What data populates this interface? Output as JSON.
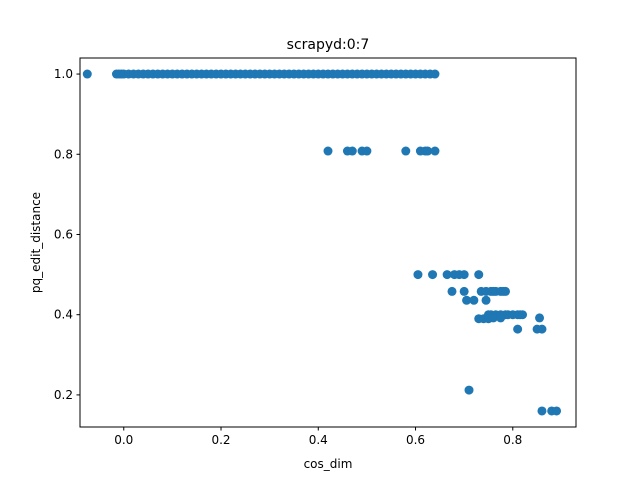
{
  "chart_data": {
    "type": "scatter",
    "title": "scrapyd:0:7",
    "xlabel": "cos_dim",
    "ylabel": "pq_edit_distance",
    "xlim": [
      -0.09,
      0.93
    ],
    "ylim": [
      0.12,
      1.04
    ],
    "xticks": [
      0.0,
      0.2,
      0.4,
      0.6,
      0.8
    ],
    "xtick_labels": [
      "0.0",
      "0.2",
      "0.4",
      "0.6",
      "0.8"
    ],
    "yticks": [
      0.2,
      0.4,
      0.6,
      0.8,
      1.0
    ],
    "ytick_labels": [
      "0.2",
      "0.4",
      "0.6",
      "0.8",
      "1.0"
    ],
    "grid": false,
    "legend": "none",
    "marker_color": "#1f77b4",
    "series": [
      {
        "x": [
          -0.075,
          -0.015,
          -0.01,
          -0.005,
          0.0,
          0.01,
          0.02,
          0.03,
          0.04,
          0.05,
          0.06,
          0.07,
          0.08,
          0.09,
          0.1,
          0.11,
          0.12,
          0.13,
          0.14,
          0.15,
          0.16,
          0.17,
          0.18,
          0.19,
          0.2,
          0.21,
          0.22,
          0.23,
          0.24,
          0.25,
          0.26,
          0.27,
          0.28,
          0.29,
          0.3,
          0.31,
          0.32,
          0.33,
          0.34,
          0.35,
          0.36,
          0.37,
          0.38,
          0.39,
          0.4,
          0.41,
          0.42,
          0.43,
          0.44,
          0.45,
          0.46,
          0.47,
          0.48,
          0.49,
          0.5,
          0.51,
          0.52,
          0.53,
          0.54,
          0.55,
          0.56,
          0.57,
          0.58,
          0.59,
          0.6,
          0.61,
          0.62,
          0.63,
          0.64,
          0.42,
          0.46,
          0.47,
          0.49,
          0.5,
          0.58,
          0.61,
          0.62,
          0.625,
          0.64,
          0.605,
          0.635,
          0.665,
          0.68,
          0.69,
          0.7,
          0.73,
          0.675,
          0.7,
          0.735,
          0.745,
          0.755,
          0.76,
          0.765,
          0.775,
          0.78,
          0.785,
          0.705,
          0.72,
          0.745,
          0.75,
          0.755,
          0.765,
          0.775,
          0.785,
          0.79,
          0.8,
          0.81,
          0.815,
          0.82,
          0.855,
          0.73,
          0.74,
          0.75,
          0.76,
          0.775,
          0.81,
          0.85,
          0.86,
          0.71,
          0.86,
          0.88,
          0.89
        ],
        "y": [
          1.0,
          1.0,
          1.0,
          1.0,
          1.0,
          1.0,
          1.0,
          1.0,
          1.0,
          1.0,
          1.0,
          1.0,
          1.0,
          1.0,
          1.0,
          1.0,
          1.0,
          1.0,
          1.0,
          1.0,
          1.0,
          1.0,
          1.0,
          1.0,
          1.0,
          1.0,
          1.0,
          1.0,
          1.0,
          1.0,
          1.0,
          1.0,
          1.0,
          1.0,
          1.0,
          1.0,
          1.0,
          1.0,
          1.0,
          1.0,
          1.0,
          1.0,
          1.0,
          1.0,
          1.0,
          1.0,
          1.0,
          1.0,
          1.0,
          1.0,
          1.0,
          1.0,
          1.0,
          1.0,
          1.0,
          1.0,
          1.0,
          1.0,
          1.0,
          1.0,
          1.0,
          1.0,
          1.0,
          1.0,
          1.0,
          1.0,
          1.0,
          1.0,
          1.0,
          0.808,
          0.808,
          0.808,
          0.808,
          0.808,
          0.808,
          0.808,
          0.808,
          0.808,
          0.808,
          0.5,
          0.5,
          0.5,
          0.5,
          0.5,
          0.5,
          0.5,
          0.458,
          0.458,
          0.458,
          0.458,
          0.458,
          0.458,
          0.458,
          0.458,
          0.458,
          0.458,
          0.436,
          0.436,
          0.436,
          0.4,
          0.4,
          0.4,
          0.4,
          0.4,
          0.4,
          0.4,
          0.4,
          0.4,
          0.4,
          0.392,
          0.39,
          0.39,
          0.39,
          0.392,
          0.392,
          0.364,
          0.364,
          0.364,
          0.212,
          0.16,
          0.16,
          0.16
        ]
      }
    ]
  }
}
